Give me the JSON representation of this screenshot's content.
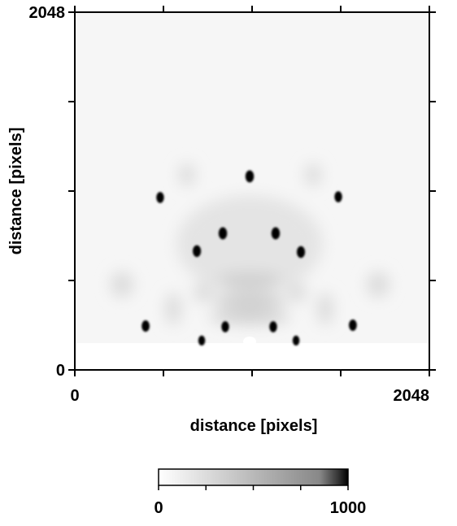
{
  "chart_data": {
    "type": "image",
    "xlabel": "distance [pixels]",
    "ylabel": "distance [pixels]",
    "xlim": [
      0,
      2048
    ],
    "ylim": [
      0,
      2048
    ],
    "xticks": [
      0,
      2048
    ],
    "yticks": [
      0,
      2048
    ],
    "xminorticks": [
      512,
      1024,
      1536
    ],
    "yminorticks": [
      512,
      1024,
      1536
    ],
    "spots": {
      "x": [
        1010,
        493,
        1522,
        855,
        1160,
        705,
        1306,
        409,
        1606,
        869,
        1146,
        733,
        1278
      ],
      "y": [
        1108,
        987,
        991,
        782,
        782,
        680,
        675,
        251,
        256,
        247,
        247,
        168,
        168
      ],
      "intensity": [
        1000,
        850,
        850,
        1000,
        1000,
        950,
        950,
        900,
        900,
        850,
        850,
        700,
        700
      ]
    },
    "colorbar": {
      "lim": [
        0,
        1000
      ],
      "ticks": [
        0,
        1000
      ],
      "minorticks": [
        250,
        500,
        750
      ]
    }
  }
}
